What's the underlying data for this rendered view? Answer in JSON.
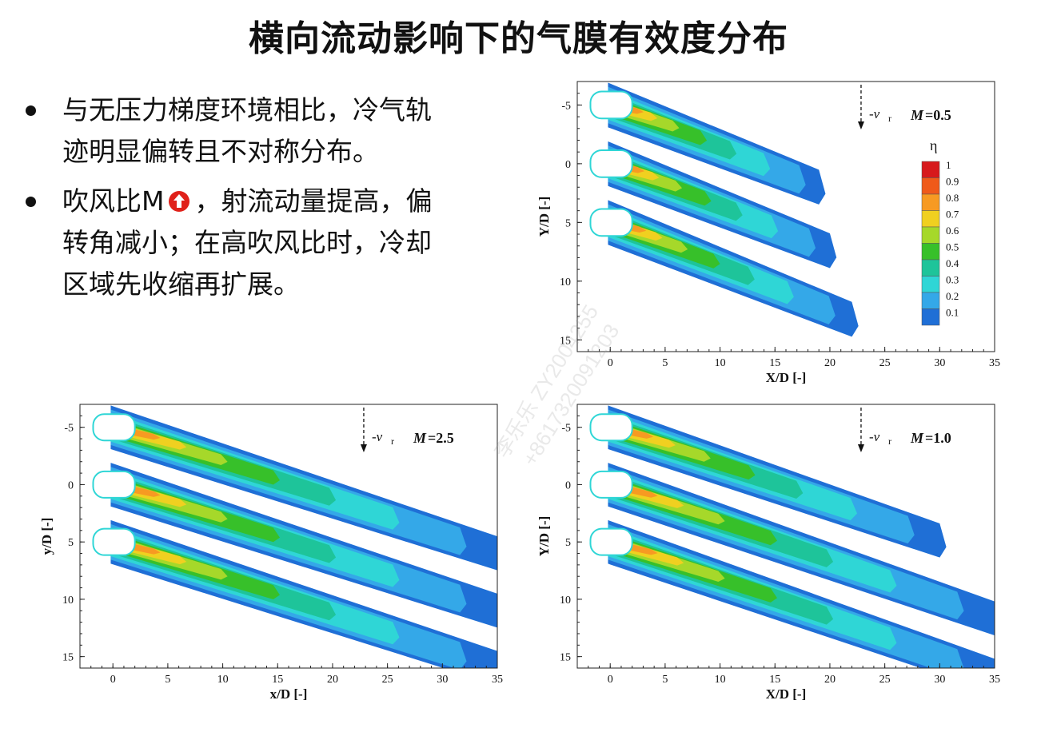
{
  "title": "横向流动影响下的气膜有效度分布",
  "bullets": [
    {
      "text": "与无压力梯度环境相比，冷气轨迹明显偏转且不对称分布。",
      "lines": [
        "与无压力梯度环境相比，冷气轨",
        "迹明显偏转且不对称分布。"
      ]
    },
    {
      "lines_before": "吹风比M",
      "icon": "up-arrow-icon",
      "lines_after": [
        "，射流动量提高，偏",
        "转角减小；在高吹风比时，冷却",
        "区域先收缩再扩展。"
      ]
    }
  ],
  "watermark": {
    "line1": "李乐乐 ZY2004255",
    "line2": "+8617320091203"
  },
  "panels": [
    {
      "id": "m05",
      "xlabel": "X/D [-]",
      "ylabel": "Y/D [-]",
      "label_M": "M",
      "label_value": "=0.5",
      "flow_label": "-v",
      "flow_sub": "r"
    },
    {
      "id": "m25",
      "xlabel": "x/D [-]",
      "ylabel": "y/D [-]",
      "label_M": "M",
      "label_value": "=2.5",
      "flow_label": "-v",
      "flow_sub": "r"
    },
    {
      "id": "m10",
      "xlabel": "X/D [-]",
      "ylabel": "Y/D [-]",
      "label_M": "M",
      "label_value": "=1.0",
      "flow_label": "-v",
      "flow_sub": "r"
    }
  ],
  "legend": {
    "title": "η",
    "levels": [
      "1",
      "0.9",
      "0.8",
      "0.7",
      "0.6",
      "0.5",
      "0.4",
      "0.3",
      "0.2",
      "0.1"
    ],
    "colors": [
      "#d7191c",
      "#ef5a1a",
      "#f79a22",
      "#f0d020",
      "#a6d82a",
      "#37c02a",
      "#1ec49a",
      "#2fd6d6",
      "#34a8e8",
      "#1f6fd6"
    ]
  },
  "axes": {
    "x_ticks": [
      "0",
      "5",
      "10",
      "15",
      "20",
      "25",
      "30",
      "35"
    ],
    "y_ticks": [
      "-5",
      "0",
      "5",
      "10",
      "15"
    ]
  },
  "chart_data": {
    "type": "heatmap",
    "xlabel": "X/D [-]",
    "ylabel": "Y/D [-]",
    "xlim": [
      -3,
      35
    ],
    "ylim": [
      -7,
      16
    ],
    "colorbar": {
      "title": "η",
      "ticks": [
        0.1,
        0.2,
        0.3,
        0.4,
        0.5,
        0.6,
        0.7,
        0.8,
        0.9,
        1
      ]
    },
    "panels": [
      {
        "name": "M=0.5",
        "hole_centers_y": [
          -5,
          0,
          5
        ],
        "trace_end_x": [
          19,
          20,
          22
        ]
      },
      {
        "name": "M=2.5",
        "hole_centers_y": [
          -5,
          0,
          5
        ],
        "trace_end_x": [
          35,
          35,
          35
        ]
      },
      {
        "name": "M=1.0",
        "hole_centers_y": [
          -5,
          0,
          5
        ],
        "trace_end_x": [
          30,
          35,
          35
        ]
      }
    ]
  }
}
